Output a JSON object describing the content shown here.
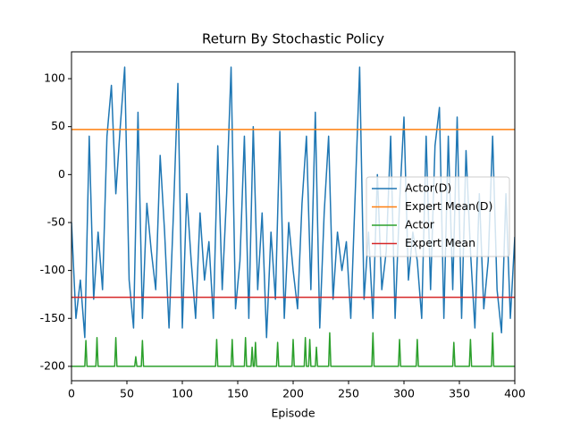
{
  "chart_data": {
    "type": "line",
    "title": "Return By Stochastic Policy",
    "x_label": "Episode",
    "xlim": [
      0,
      400
    ],
    "ylim": [
      -215,
      128
    ],
    "xticks": [
      0,
      50,
      100,
      150,
      200,
      250,
      300,
      350,
      400
    ],
    "yticks": [
      -200,
      -150,
      -100,
      -50,
      0,
      50,
      100
    ],
    "grid": false,
    "legend": "center right",
    "series": [
      {
        "name": "Actor(D)",
        "color": "#1f77b4",
        "x": [
          0,
          4,
          8,
          12,
          16,
          20,
          24,
          28,
          32,
          36,
          40,
          44,
          48,
          52,
          56,
          60,
          64,
          68,
          72,
          76,
          80,
          84,
          88,
          92,
          96,
          100,
          104,
          108,
          112,
          116,
          120,
          124,
          128,
          132,
          136,
          140,
          144,
          148,
          152,
          156,
          160,
          164,
          168,
          172,
          176,
          180,
          184,
          188,
          192,
          196,
          200,
          204,
          208,
          212,
          216,
          220,
          224,
          228,
          232,
          236,
          240,
          244,
          248,
          252,
          256,
          260,
          264,
          268,
          272,
          276,
          280,
          284,
          288,
          292,
          296,
          300,
          304,
          308,
          312,
          316,
          320,
          324,
          328,
          332,
          336,
          340,
          344,
          348,
          352,
          356,
          360,
          364,
          368,
          372,
          376,
          380,
          384,
          388,
          392,
          396,
          400
        ],
        "values": [
          -50,
          -150,
          -110,
          -170,
          40,
          -130,
          -60,
          -120,
          40,
          93,
          -20,
          50,
          112,
          -110,
          -160,
          65,
          -150,
          -30,
          -80,
          -120,
          20,
          -60,
          -160,
          -40,
          95,
          -160,
          -20,
          -90,
          -150,
          -40,
          -110,
          -70,
          -150,
          30,
          -120,
          -20,
          112,
          -140,
          -90,
          40,
          -150,
          50,
          -120,
          -40,
          -170,
          -60,
          -130,
          45,
          -150,
          -50,
          -100,
          -140,
          -30,
          40,
          -120,
          65,
          -160,
          -40,
          40,
          -130,
          -60,
          -100,
          -70,
          -150,
          -20,
          112,
          -130,
          -60,
          -150,
          0,
          -120,
          -80,
          40,
          -150,
          -30,
          60,
          -110,
          -60,
          -90,
          -150,
          40,
          -120,
          30,
          70,
          -150,
          40,
          -120,
          60,
          -150,
          25,
          -80,
          -160,
          -20,
          -140,
          -90,
          40,
          -120,
          -165,
          -20,
          -150,
          -65
        ]
      },
      {
        "name": "Expert Mean(D)",
        "color": "#ff7f0e",
        "x": [
          0,
          400
        ],
        "values": [
          47,
          47
        ]
      },
      {
        "name": "Actor",
        "color": "#2ca02c",
        "x": [
          0,
          12,
          13,
          14,
          22,
          23,
          24,
          39,
          40,
          41,
          57,
          58,
          59,
          63,
          64,
          65,
          130,
          131,
          132,
          144,
          145,
          146,
          156,
          157,
          158,
          162,
          163,
          164,
          165,
          166,
          167,
          185,
          186,
          187,
          199,
          200,
          201,
          210,
          211,
          212,
          214,
          215,
          216,
          220,
          221,
          222,
          232,
          233,
          234,
          271,
          272,
          273,
          295,
          296,
          297,
          311,
          312,
          313,
          344,
          345,
          346,
          359,
          360,
          361,
          379,
          380,
          381,
          400
        ],
        "values": [
          -200,
          -200,
          -173,
          -200,
          -200,
          -170,
          -200,
          -200,
          -170,
          -200,
          -200,
          -190,
          -200,
          -200,
          -173,
          -200,
          -200,
          -172,
          -200,
          -200,
          -172,
          -200,
          -200,
          -170,
          -200,
          -200,
          -180,
          -200,
          -200,
          -175,
          -200,
          -200,
          -175,
          -200,
          -200,
          -172,
          -200,
          -200,
          -170,
          -200,
          -200,
          -172,
          -200,
          -200,
          -180,
          -200,
          -200,
          -165,
          -200,
          -200,
          -165,
          -200,
          -200,
          -172,
          -200,
          -200,
          -172,
          -200,
          -200,
          -175,
          -200,
          -200,
          -172,
          -200,
          -200,
          -165,
          -200,
          -200
        ]
      },
      {
        "name": "Expert Mean",
        "color": "#d62728",
        "x": [
          0,
          400
        ],
        "values": [
          -128,
          -128
        ]
      }
    ]
  }
}
